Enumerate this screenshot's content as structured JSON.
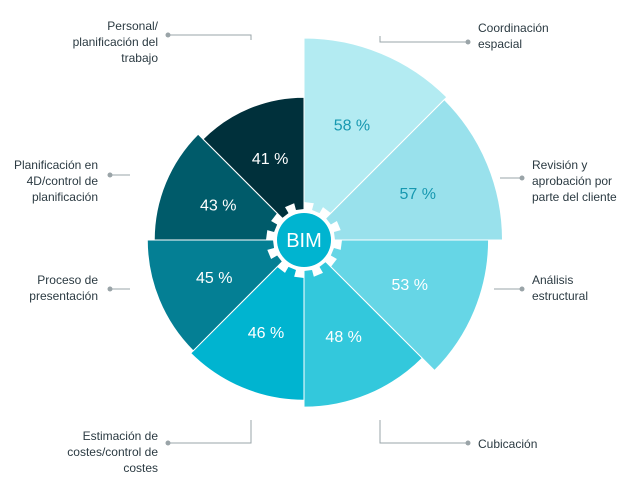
{
  "chart_data": {
    "type": "pie",
    "center_label": "BIM",
    "unit": "%",
    "slices": [
      {
        "label": "Coordinación\nespacial",
        "value": 58,
        "value_text": "58 %",
        "color": "#b3ebf2",
        "text_color": "#1798b0"
      },
      {
        "label": "Revisión y\naprobación por\nparte del cliente",
        "value": 57,
        "value_text": "57 %",
        "color": "#99e1ec",
        "text_color": "#1798b0"
      },
      {
        "label": "Análisis\nestructural",
        "value": 53,
        "value_text": "53 %",
        "color": "#66d6e6",
        "text_color": "#ffffff"
      },
      {
        "label": "Cubicación",
        "value": 48,
        "value_text": "48 %",
        "color": "#33c8dc",
        "text_color": "#ffffff"
      },
      {
        "label": "Estimación de\ncostes/control de\ncostes",
        "value": 46,
        "value_text": "46 %",
        "color": "#00b4d0",
        "text_color": "#ffffff"
      },
      {
        "label": "Proceso de\npresentación",
        "value": 45,
        "value_text": "45 %",
        "color": "#047f94",
        "text_color": "#ffffff"
      },
      {
        "label": "Planificación en\n4D/control de\nplanificación",
        "value": 43,
        "value_text": "43 %",
        "color": "#005b6a",
        "text_color": "#ffffff"
      },
      {
        "label": "Personal/\nplanificación del\ntrabajo",
        "value": 41,
        "value_text": "41 %",
        "color": "#00303b",
        "text_color": "#ffffff"
      }
    ],
    "colors": {
      "gear": "#ffffff",
      "center_circle": "#00b4d0",
      "center_text": "#ffffff",
      "leader": "#9aa4a8"
    }
  }
}
